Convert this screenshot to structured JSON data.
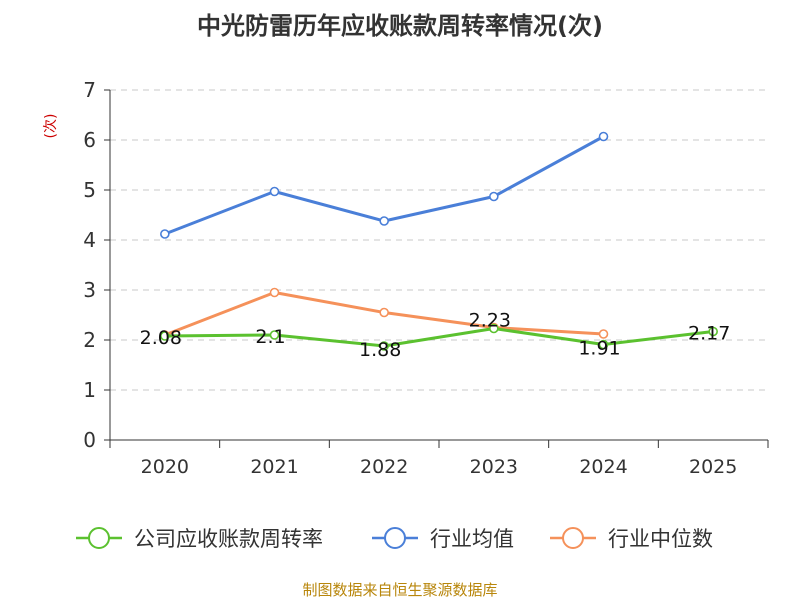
{
  "chart_data": {
    "type": "line",
    "title": "中光防雷历年应收账款周转率情况(次)",
    "ylabel": "(次)",
    "xlabel": "",
    "ylim": [
      0,
      7
    ],
    "yticks": [
      "0",
      "1",
      "2",
      "3",
      "4",
      "5",
      "6",
      "7"
    ],
    "categories": [
      "2020",
      "2021",
      "2022",
      "2023",
      "2024",
      "2025"
    ],
    "grid": true,
    "legend_position": "bottom",
    "series": [
      {
        "name": "公司应收账款周转率",
        "color": "#5bc12f",
        "values": [
          2.08,
          2.1,
          1.88,
          2.23,
          1.91,
          2.17
        ],
        "labels": [
          "2.08",
          "2.1",
          "1.88",
          "2.23",
          "1.91",
          "2.17"
        ]
      },
      {
        "name": "行业均值",
        "color": "#4a7fd8",
        "values": [
          4.12,
          4.97,
          4.38,
          4.87,
          6.07,
          null
        ]
      },
      {
        "name": "行业中位数",
        "color": "#f5915a",
        "values": [
          2.1,
          2.95,
          2.55,
          2.25,
          2.12,
          null
        ]
      }
    ],
    "source": "制图数据来自恒生聚源数据库",
    "source_color": "#b8860b"
  }
}
